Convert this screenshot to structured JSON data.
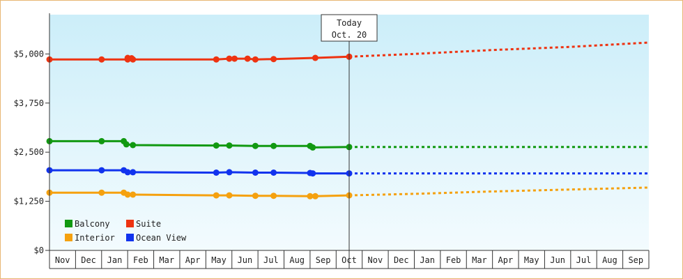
{
  "chart_data": {
    "type": "line",
    "title": "",
    "xlabel": "",
    "ylabel": "",
    "ylim": [
      0,
      6000
    ],
    "y_ticks": [
      0,
      1250,
      2500,
      3750,
      5000
    ],
    "y_tick_labels": [
      "$0",
      "$1,250",
      "$2,500",
      "$3,750",
      "$5,000"
    ],
    "x_range": [
      0,
      23
    ],
    "month_labels": [
      "Nov",
      "Dec",
      "Jan",
      "Feb",
      "Mar",
      "Apr",
      "May",
      "Jun",
      "Jul",
      "Aug",
      "Sep",
      "Oct",
      "Nov",
      "Dec",
      "Jan",
      "Feb",
      "Mar",
      "Apr",
      "May",
      "Jun",
      "Jul",
      "Aug",
      "Sep"
    ],
    "grid": false,
    "legend_position": "bottom-left",
    "today_marker": {
      "x": 11.5,
      "line1": "Today",
      "line2": "Oct. 20"
    },
    "series": [
      {
        "name": "Balcony",
        "color": "#119911",
        "points": [
          [
            0,
            2780
          ],
          [
            2,
            2780
          ],
          [
            2.85,
            2780
          ],
          [
            2.95,
            2700
          ],
          [
            3.2,
            2680
          ],
          [
            6.4,
            2670
          ],
          [
            6.9,
            2670
          ],
          [
            7.9,
            2660
          ],
          [
            8.6,
            2660
          ],
          [
            10,
            2660
          ],
          [
            10.1,
            2620
          ],
          [
            11.5,
            2630
          ]
        ],
        "forecast": [
          [
            11.5,
            2630
          ],
          [
            23,
            2630
          ]
        ]
      },
      {
        "name": "Suite",
        "color": "#ee3311",
        "points": [
          [
            0,
            4860
          ],
          [
            2,
            4860
          ],
          [
            3,
            4860
          ],
          [
            3,
            4900
          ],
          [
            3.15,
            4890
          ],
          [
            3.2,
            4860
          ],
          [
            6.4,
            4860
          ],
          [
            6.9,
            4880
          ],
          [
            7.1,
            4880
          ],
          [
            7.6,
            4880
          ],
          [
            7.9,
            4860
          ],
          [
            8.6,
            4870
          ],
          [
            10.2,
            4900
          ],
          [
            11.5,
            4930
          ]
        ],
        "forecast": [
          [
            11.5,
            4930
          ],
          [
            14,
            5000
          ],
          [
            17,
            5100
          ],
          [
            20,
            5180
          ],
          [
            23,
            5290
          ]
        ]
      },
      {
        "name": "Interior",
        "color": "#f5a10f",
        "points": [
          [
            0,
            1470
          ],
          [
            2,
            1470
          ],
          [
            2.85,
            1470
          ],
          [
            3.0,
            1420
          ],
          [
            3.2,
            1420
          ],
          [
            6.4,
            1400
          ],
          [
            6.9,
            1400
          ],
          [
            7.9,
            1390
          ],
          [
            8.6,
            1390
          ],
          [
            10,
            1380
          ],
          [
            10.2,
            1380
          ],
          [
            11.5,
            1400
          ]
        ],
        "forecast": [
          [
            11.5,
            1400
          ],
          [
            14,
            1440
          ],
          [
            17,
            1500
          ],
          [
            20,
            1550
          ],
          [
            23,
            1600
          ]
        ]
      },
      {
        "name": "Ocean View",
        "color": "#1133ee",
        "points": [
          [
            0,
            2040
          ],
          [
            2,
            2040
          ],
          [
            2.85,
            2040
          ],
          [
            3.0,
            1990
          ],
          [
            3.2,
            1990
          ],
          [
            6.4,
            1980
          ],
          [
            6.9,
            1990
          ],
          [
            7.9,
            1980
          ],
          [
            8.6,
            1980
          ],
          [
            10,
            1970
          ],
          [
            10.1,
            1960
          ],
          [
            11.5,
            1960
          ]
        ],
        "forecast": [
          [
            11.5,
            1960
          ],
          [
            23,
            1960
          ]
        ]
      }
    ]
  }
}
